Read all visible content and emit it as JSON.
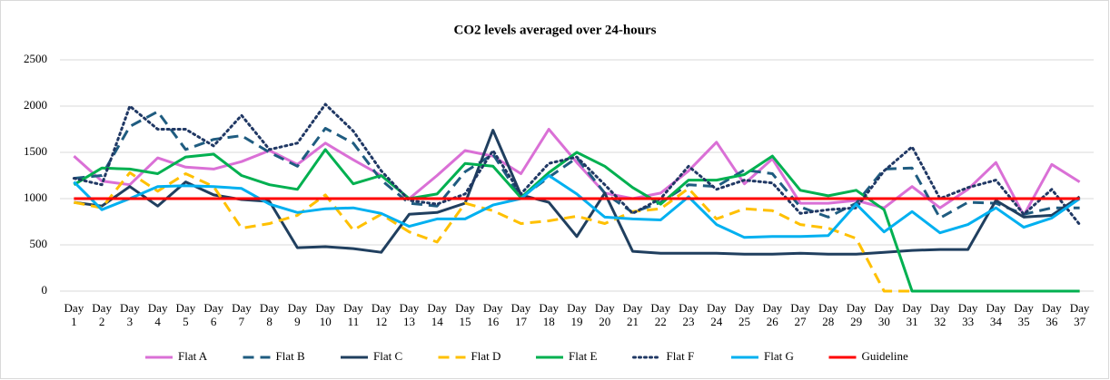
{
  "chart_data": {
    "type": "line",
    "title": "CO2 levels averaged over 24-hours",
    "categories": [
      "Day 1",
      "Day 2",
      "Day 3",
      "Day 4",
      "Day 5",
      "Day 6",
      "Day 7",
      "Day 8",
      "Day 9",
      "Day 10",
      "Day 11",
      "Day 12",
      "Day 13",
      "Day 14",
      "Day 15",
      "Day 16",
      "Day 17",
      "Day 18",
      "Day 19",
      "Day 20",
      "Day 21",
      "Day 22",
      "Day 23",
      "Day 24",
      "Day 25",
      "Day 26",
      "Day 27",
      "Day 28",
      "Day 29",
      "Day 30",
      "Day 31",
      "Day 32",
      "Day 33",
      "Day 34",
      "Day 35",
      "Day 36",
      "Day 37"
    ],
    "ylim": [
      0,
      2500
    ],
    "yticks": [
      0,
      500,
      1000,
      1500,
      2000,
      2500
    ],
    "grid": true,
    "legend": "bottom",
    "series": [
      {
        "name": "Flat A",
        "color": "#da70d6",
        "dash": "solid",
        "values": [
          1460,
          1190,
          1150,
          1440,
          1340,
          1320,
          1400,
          1520,
          1370,
          1600,
          1420,
          1250,
          1000,
          1250,
          1520,
          1460,
          1270,
          1750,
          1390,
          1060,
          1000,
          1060,
          1300,
          1610,
          1160,
          1430,
          950,
          950,
          980,
          900,
          1130,
          900,
          1100,
          1390,
          820,
          1370,
          1180
        ]
      },
      {
        "name": "Flat B",
        "color": "#1f5c80",
        "dash": "dashed",
        "values": [
          1220,
          1250,
          1780,
          1940,
          1530,
          1640,
          1680,
          1500,
          1350,
          1760,
          1600,
          1200,
          950,
          920,
          1290,
          1480,
          1010,
          1230,
          1440,
          1060,
          850,
          960,
          1150,
          1130,
          1310,
          1270,
          910,
          800,
          950,
          1320,
          1330,
          790,
          960,
          950,
          830,
          900,
          900
        ]
      },
      {
        "name": "Flat C",
        "color": "#203f5f",
        "dash": "solid",
        "values": [
          960,
          920,
          1130,
          920,
          1180,
          1040,
          990,
          970,
          470,
          480,
          460,
          420,
          830,
          850,
          950,
          1740,
          1040,
          960,
          590,
          1060,
          430,
          410,
          410,
          410,
          400,
          400,
          410,
          400,
          400,
          420,
          440,
          450,
          450,
          980,
          800,
          820,
          1020
        ]
      },
      {
        "name": "Flat D",
        "color": "#ffc000",
        "dash": "dashed",
        "values": [
          960,
          900,
          1280,
          1080,
          1270,
          1130,
          680,
          730,
          820,
          1040,
          660,
          830,
          640,
          530,
          950,
          870,
          730,
          760,
          810,
          730,
          860,
          890,
          1110,
          780,
          890,
          870,
          720,
          680,
          570,
          0,
          0,
          0,
          0,
          0,
          0,
          0,
          0
        ]
      },
      {
        "name": "Flat E",
        "color": "#00b050",
        "dash": "solid",
        "values": [
          1150,
          1330,
          1320,
          1270,
          1450,
          1480,
          1250,
          1150,
          1100,
          1530,
          1160,
          1250,
          1000,
          1050,
          1380,
          1350,
          1010,
          1280,
          1500,
          1350,
          1120,
          940,
          1200,
          1200,
          1260,
          1460,
          1090,
          1030,
          1090,
          880,
          0,
          0,
          0,
          0,
          0,
          0,
          0
        ]
      },
      {
        "name": "Flat F",
        "color": "#203864",
        "dash": "dotted",
        "values": [
          1220,
          1150,
          2000,
          1750,
          1750,
          1570,
          1900,
          1530,
          1600,
          2020,
          1730,
          1300,
          980,
          940,
          1050,
          1520,
          1050,
          1380,
          1450,
          1150,
          840,
          1000,
          1350,
          1100,
          1200,
          1170,
          840,
          880,
          900,
          1300,
          1560,
          1000,
          1120,
          1200,
          830,
          1100,
          720
        ]
      },
      {
        "name": "Flat G",
        "color": "#00b0f0",
        "dash": "solid",
        "values": [
          1180,
          880,
          1000,
          1130,
          1140,
          1130,
          1110,
          940,
          850,
          890,
          900,
          840,
          700,
          780,
          780,
          930,
          1000,
          1250,
          1050,
          800,
          780,
          770,
          1020,
          720,
          580,
          590,
          590,
          600,
          940,
          640,
          860,
          630,
          720,
          900,
          690,
          790,
          1000
        ]
      },
      {
        "name": "Guideline",
        "color": "#ff0000",
        "dash": "solid",
        "values": [
          1000,
          1000,
          1000,
          1000,
          1000,
          1000,
          1000,
          1000,
          1000,
          1000,
          1000,
          1000,
          1000,
          1000,
          1000,
          1000,
          1000,
          1000,
          1000,
          1000,
          1000,
          1000,
          1000,
          1000,
          1000,
          1000,
          1000,
          1000,
          1000,
          1000,
          1000,
          1000,
          1000,
          1000,
          1000,
          1000,
          1000
        ]
      }
    ]
  }
}
